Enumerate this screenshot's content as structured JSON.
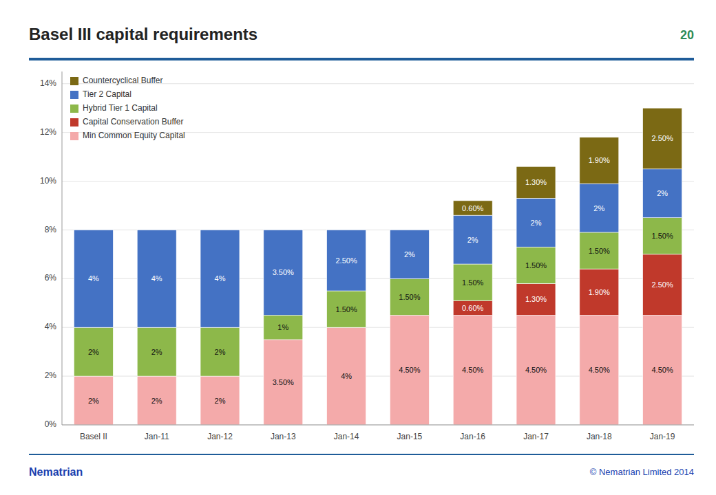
{
  "chart_data": {
    "type": "bar",
    "title": "Basel III capital requirements",
    "categories": [
      "Basel II",
      "Jan-11",
      "Jan-12",
      "Jan-13",
      "Jan-14",
      "Jan-15",
      "Jan-16",
      "Jan-17",
      "Jan-18",
      "Jan-19"
    ],
    "series": [
      {
        "name": "Min Common Equity Capital",
        "color": "#F4AAAA",
        "values": [
          2.0,
          2.0,
          2.0,
          3.5,
          4.0,
          4.5,
          4.5,
          4.5,
          4.5,
          4.5
        ],
        "value_labels": [
          "2%",
          "2%",
          "2%",
          "3.50%",
          "4%",
          "4.50%",
          "4.50%",
          "4.50%",
          "4.50%",
          "4.50%"
        ]
      },
      {
        "name": "Capital Conservation Buffer",
        "color": "#C0392B",
        "values": [
          0.0,
          0.0,
          0.0,
          0.0,
          0.0,
          0.0,
          0.6,
          1.3,
          1.9,
          2.5
        ],
        "value_labels": [
          null,
          null,
          null,
          null,
          null,
          null,
          "0.60%",
          "1.30%",
          "1.90%",
          "2.50%"
        ]
      },
      {
        "name": "Hybrid Tier 1 Capital",
        "color": "#8DB84A",
        "values": [
          2.0,
          2.0,
          2.0,
          1.0,
          1.5,
          1.5,
          1.5,
          1.5,
          1.5,
          1.5
        ],
        "value_labels": [
          "2%",
          "2%",
          "2%",
          "1%",
          "1.50%",
          "1.50%",
          "1.50%",
          "1.50%",
          "1.50%",
          "1.50%"
        ]
      },
      {
        "name": "Tier 2 Capital",
        "color": "#4472C4",
        "values": [
          4.0,
          4.0,
          4.0,
          3.5,
          2.5,
          2.0,
          2.0,
          2.0,
          2.0,
          2.0
        ],
        "value_labels": [
          "4%",
          "4%",
          "4%",
          "3.50%",
          "2.50%",
          "2%",
          "2%",
          "2%",
          "2%",
          "2%"
        ]
      },
      {
        "name": "Countercyclical Buffer",
        "color": "#7B6914",
        "values": [
          0.0,
          0.0,
          0.0,
          0.0,
          0.0,
          0.0,
          0.6,
          1.3,
          1.9,
          2.5
        ],
        "value_labels": [
          null,
          null,
          null,
          null,
          null,
          null,
          "0.60%",
          "1.30%",
          "1.90%",
          "2.50%"
        ]
      }
    ],
    "stacked": true,
    "data_labels": true,
    "ylim": [
      0,
      14.5
    ],
    "yticks": [
      {
        "value": 0,
        "label": "0%"
      },
      {
        "value": 2,
        "label": "2%"
      },
      {
        "value": 4,
        "label": "4%"
      },
      {
        "value": 6,
        "label": "6%"
      },
      {
        "value": 8,
        "label": "8%"
      },
      {
        "value": 10,
        "label": "10%"
      },
      {
        "value": 12,
        "label": "12%"
      },
      {
        "value": 14,
        "label": "14%"
      }
    ],
    "grid": true,
    "legend": "upper left",
    "annotations": [
      "20",
      "Nematrian",
      "© Nematrian Limited 2014"
    ]
  }
}
